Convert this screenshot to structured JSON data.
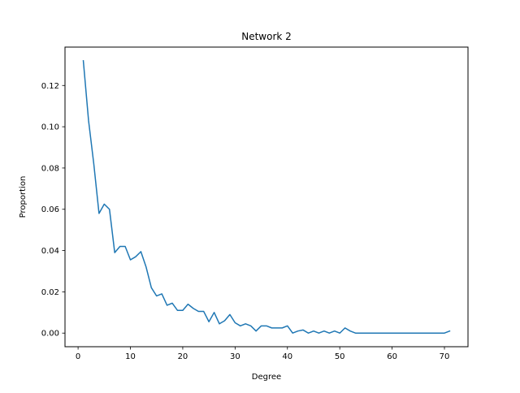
{
  "chart_data": {
    "type": "line",
    "title": "Network 2",
    "xlabel": "Degree",
    "ylabel": "Proportion",
    "xlim": [
      -2.5,
      74.5
    ],
    "ylim": [
      -0.0066,
      0.1386
    ],
    "xticks": [
      0,
      10,
      20,
      30,
      40,
      50,
      60,
      70
    ],
    "yticks": [
      0.0,
      0.02,
      0.04,
      0.06,
      0.08,
      0.1,
      0.12
    ],
    "ytick_labels": [
      "0.00",
      "0.02",
      "0.04",
      "0.06",
      "0.08",
      "0.10",
      "0.12"
    ],
    "grid": false,
    "legend": "none",
    "series": [
      {
        "color": "#1f77b4",
        "x": [
          1,
          2,
          3,
          4,
          5,
          6,
          7,
          8,
          9,
          10,
          11,
          12,
          13,
          14,
          15,
          16,
          17,
          18,
          19,
          20,
          21,
          22,
          23,
          24,
          25,
          26,
          27,
          28,
          29,
          30,
          31,
          32,
          33,
          34,
          35,
          36,
          37,
          38,
          39,
          40,
          41,
          42,
          43,
          44,
          45,
          46,
          47,
          48,
          49,
          50,
          51,
          52,
          53,
          54,
          55,
          56,
          57,
          58,
          59,
          60,
          61,
          62,
          63,
          64,
          65,
          66,
          67,
          68,
          69,
          70,
          71
        ],
        "y": [
          0.132,
          0.103,
          0.082,
          0.058,
          0.0625,
          0.06,
          0.039,
          0.042,
          0.042,
          0.0355,
          0.037,
          0.0395,
          0.032,
          0.022,
          0.018,
          0.019,
          0.0135,
          0.0145,
          0.011,
          0.011,
          0.014,
          0.012,
          0.0105,
          0.0105,
          0.0055,
          0.01,
          0.0045,
          0.006,
          0.009,
          0.005,
          0.0035,
          0.0045,
          0.0035,
          0.001,
          0.0035,
          0.0035,
          0.0025,
          0.0025,
          0.0025,
          0.0035,
          0.0,
          0.001,
          0.0015,
          0.0,
          0.001,
          0.0,
          0.001,
          0.0,
          0.001,
          0.0,
          0.0025,
          0.001,
          0.0,
          0.0,
          0.0,
          0.0,
          0.0,
          0.0,
          0.0,
          0.0,
          0.0,
          0.0,
          0.0,
          0.0,
          0.0,
          0.0,
          0.0,
          0.0,
          0.0,
          0.0,
          0.001
        ]
      }
    ]
  }
}
